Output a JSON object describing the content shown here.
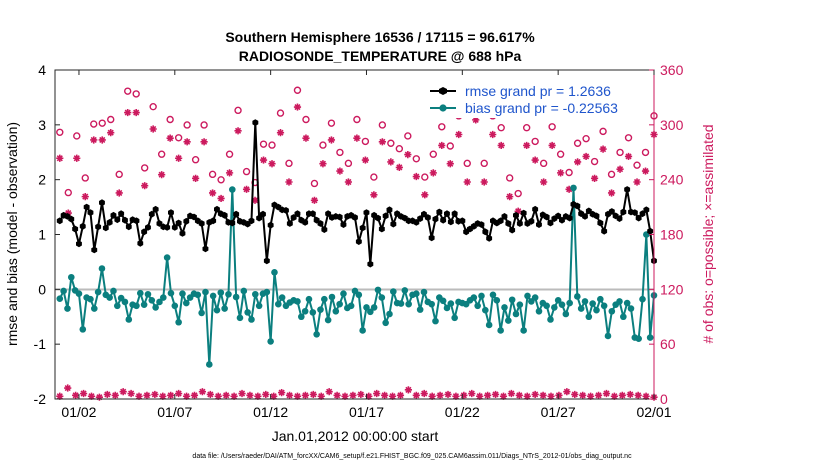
{
  "chart_data": {
    "type": "line",
    "title": "Southern Hemisphere 16536 / 17115 = 96.617%",
    "subtitle": "RADIOSONDE_TEMPERATURE @ 688 hPa",
    "xlabel": "Jan.01,2012 00:00:00 start",
    "ylabel": "rmse and bias (model - observation)",
    "y2label": "# of obs: o=possible; ×=assimilated",
    "footnote": "data file: /Users/raeder/DAI/ATM_forcXX/CAM6_setup/f.e21.FHIST_BGC.f09_025.CAM6assim.011/Diags_NTrS_2012-01/obs_diag_output.nc",
    "xlim": [
      0.75,
      32.0
    ],
    "ylim": [
      -2,
      4
    ],
    "y2lim": [
      0,
      360
    ],
    "x_ticks": [
      2,
      7,
      12,
      17,
      22,
      27,
      32
    ],
    "x_tick_labels": [
      "01/02",
      "01/07",
      "01/12",
      "01/17",
      "01/22",
      "01/27",
      "02/01"
    ],
    "y_ticks": [
      -2,
      -1,
      0,
      1,
      2,
      3,
      4
    ],
    "y2_ticks": [
      0,
      60,
      120,
      180,
      240,
      300,
      360
    ],
    "series": [
      {
        "name": "rmse grand pr = 1.2636",
        "color": "#000000",
        "values": [
          1.25,
          1.35,
          1.33,
          1.28,
          1.1,
          0.83,
          1.15,
          1.5,
          1.4,
          0.72,
          1.14,
          1.58,
          1.12,
          1.22,
          1.35,
          1.27,
          1.38,
          1.26,
          1.14,
          1.27,
          1.25,
          0.84,
          1.05,
          1.13,
          1.37,
          1.46,
          1.2,
          1.14,
          1.13,
          1.4,
          1.13,
          1.21,
          1.02,
          1.24,
          1.34,
          1.32,
          1.25,
          1.2,
          0.74,
          1.22,
          1.25,
          1.46,
          1.38,
          1.35,
          1.22,
          1.21,
          1.37,
          1.24,
          1.22,
          1.19,
          1.25,
          3.04,
          1.3,
          1.37,
          0.52,
          1.17,
          1.54,
          1.5,
          1.45,
          1.44,
          1.2,
          1.31,
          1.38,
          1.26,
          1.22,
          1.38,
          1.38,
          1.26,
          1.2,
          1.09,
          1.38,
          1.31,
          1.33,
          1.32,
          1.18,
          1.33,
          1.35,
          1.31,
          0.87,
          1.12,
          1.4,
          0.46,
          1.35,
          1.3,
          1.1,
          1.34,
          1.45,
          1.19,
          1.38,
          1.33,
          1.3,
          1.25,
          1.25,
          1.22,
          1.29,
          1.37,
          1.31,
          0.94,
          1.28,
          1.41,
          1.26,
          1.38,
          1.23,
          1.38,
          1.24,
          1.25,
          1.05,
          1.1,
          1.15,
          1.2,
          1.18,
          1.05,
          0.93,
          1.25,
          1.21,
          1.25,
          1.33,
          1.2,
          1.08,
          1.35,
          1.2,
          1.39,
          1.2,
          1.24,
          1.46,
          1.18,
          1.36,
          1.32,
          1.21,
          1.29,
          1.34,
          1.26,
          1.33,
          1.3,
          1.55,
          1.52,
          1.38,
          1.33,
          1.43,
          1.37,
          1.34,
          1.21,
          1.06,
          1.37,
          1.42,
          1.34,
          1.29,
          1.41,
          1.82,
          1.41,
          1.4,
          1.3,
          1.38,
          1.45,
          1.06,
          0.52
        ]
      },
      {
        "name": "bias grand pr = -0.22563",
        "color": "#0b7f7f",
        "values": [
          -0.17,
          -0.03,
          -0.35,
          0.22,
          -0.02,
          -0.08,
          -0.73,
          -0.15,
          -0.18,
          -0.35,
          -0.05,
          0.38,
          -0.1,
          -0.15,
          -0.03,
          -0.3,
          -0.16,
          -0.23,
          -0.55,
          -0.28,
          -0.3,
          -0.07,
          -0.28,
          -0.09,
          -0.2,
          -0.33,
          -0.23,
          -0.15,
          0.58,
          -0.07,
          -0.3,
          -0.6,
          -0.08,
          -0.25,
          -0.15,
          -0.08,
          -0.1,
          -0.43,
          -0.05,
          -1.37,
          -0.12,
          -0.38,
          -0.06,
          -0.35,
          -0.09,
          1.82,
          -0.14,
          -0.52,
          -0.03,
          -0.42,
          -0.55,
          -0.09,
          -0.3,
          -0.08,
          -0.05,
          -0.95,
          0.31,
          -0.27,
          -0.15,
          -0.3,
          -0.24,
          -0.2,
          -0.22,
          -0.5,
          -0.4,
          -0.18,
          -0.42,
          -0.82,
          -0.37,
          -0.18,
          -0.56,
          -0.14,
          -0.4,
          -0.27,
          -0.08,
          -0.34,
          -0.3,
          -0.03,
          -0.1,
          -0.75,
          -0.33,
          -0.41,
          -0.33,
          -0.01,
          -0.15,
          -0.61,
          -0.45,
          -0.04,
          -0.25,
          -0.26,
          -0.02,
          -0.27,
          -0.1,
          -0.08,
          -0.37,
          -0.05,
          -0.23,
          -0.27,
          -0.58,
          -0.15,
          -0.21,
          -0.34,
          -0.26,
          -0.52,
          -0.23,
          -0.25,
          -0.27,
          -0.2,
          -0.15,
          -0.3,
          -0.12,
          -0.38,
          -0.65,
          -0.1,
          -0.2,
          -0.75,
          -0.33,
          -0.57,
          -0.19,
          -0.45,
          -0.28,
          -0.75,
          -0.12,
          -0.22,
          -0.15,
          -0.4,
          -0.25,
          -0.3,
          -0.55,
          -0.33,
          -0.2,
          -0.28,
          -0.45,
          -0.25,
          1.85,
          -0.13,
          -0.35,
          -0.22,
          -0.5,
          -0.26,
          -0.38,
          -0.18,
          -0.3,
          -0.85,
          -0.4,
          -0.28,
          -0.22,
          -0.5,
          -0.25,
          -0.35,
          -0.88,
          -0.9,
          -0.18,
          1.0,
          -0.88,
          -0.11
        ]
      }
    ],
    "obs_possible": [
      282,
      216,
      278,
      232,
      291,
      292,
      296,
      236,
      327,
      324,
      243,
      310,
      258,
      296,
      276,
      290,
      252,
      290,
      236,
      230,
      258,
      306,
      239,
      227,
      269,
      268,
      303,
      248,
      328,
      296,
      226,
      268,
      292,
      260,
      248,
      296,
      272,
      233,
      290,
      270,
      264,
      278,
      253,
      233,
      258,
      288,
      267,
      300,
      248,
      315,
      248,
      300,
      287,
      232,
      215,
      287,
      272,
      248,
      288,
      258,
      238,
      270,
      275,
      250,
      283,
      236,
      260,
      276,
      246,
      260,
      300
    ],
    "obs_assimilated": [
      270,
      210,
      270,
      228,
      290,
      290,
      298,
      232,
      320,
      320,
      240,
      302,
      252,
      292,
      270,
      288,
      248,
      288,
      232,
      226,
      254,
      300,
      236,
      224,
      268,
      264,
      298,
      244,
      326,
      292,
      224,
      264,
      290,
      256,
      244,
      292,
      268,
      230,
      288,
      266,
      260,
      274,
      250,
      230,
      254,
      284,
      264,
      296,
      244,
      312,
      244,
      296,
      284,
      228,
      212,
      284,
      268,
      244,
      284,
      254,
      236,
      266,
      272,
      248,
      280,
      232,
      258,
      272,
      244,
      256,
      296
    ],
    "obs_low": [
      3,
      12,
      4,
      6,
      3,
      2,
      5,
      4,
      8,
      6,
      3,
      4,
      5,
      3,
      4,
      6,
      3,
      4,
      8,
      5,
      3,
      4,
      3,
      6,
      4,
      3,
      5,
      3,
      7,
      4,
      3,
      4,
      5,
      3,
      8,
      4,
      3,
      4,
      5,
      3,
      6,
      4,
      3,
      4,
      10,
      4,
      6,
      3,
      4,
      5,
      3,
      4,
      6,
      3,
      4,
      5,
      3,
      6,
      4,
      3,
      5,
      4,
      3,
      4,
      8,
      5,
      4,
      3,
      4,
      6,
      3,
      4,
      5,
      4,
      3,
      2
    ]
  },
  "legend": {
    "rmse": "rmse grand pr = 1.2636",
    "bias": "bias grand pr = -0.22563"
  }
}
